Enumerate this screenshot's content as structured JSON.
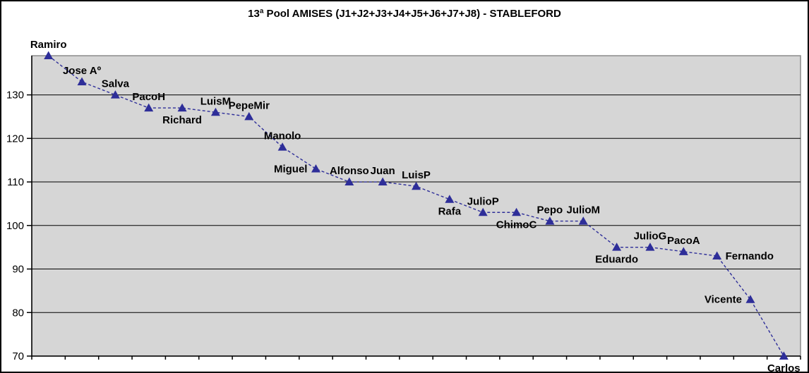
{
  "chart_data": {
    "type": "line",
    "title": "13ª Pool AMISES (J1+J2+J3+J4+J5+J6+J7+J8) - STABLEFORD",
    "xlabel": "",
    "ylabel": "",
    "categories": [
      "Ramiro",
      "Jose Aº",
      "Salva",
      "PacoH",
      "Richard",
      "LuisM",
      "PepeMir",
      "Manolo",
      "Miguel",
      "Alfonso",
      "Juan",
      "LuisP",
      "Rafa",
      "JulioP",
      "ChimoC",
      "Pepo",
      "JulioM",
      "Eduardo",
      "JulioG",
      "PacoA",
      "Fernando",
      "Vicente",
      "Carlos"
    ],
    "values": [
      139,
      133,
      130,
      127,
      127,
      126,
      125,
      118,
      113,
      110,
      110,
      109,
      106,
      103,
      103,
      101,
      101,
      95,
      95,
      94,
      93,
      83,
      70
    ],
    "label_positions": [
      "above",
      "above",
      "above",
      "above",
      "below",
      "above",
      "above",
      "above",
      "left",
      "above",
      "above",
      "above",
      "below",
      "above",
      "below",
      "above",
      "above",
      "below",
      "above",
      "above",
      "right",
      "left",
      "below"
    ],
    "ylim": [
      70,
      139
    ],
    "yticks": [
      70,
      80,
      90,
      100,
      110,
      120,
      130
    ],
    "grid": true,
    "legend_position": "none",
    "marker": "triangle",
    "line_dash": "dashed",
    "colors": {
      "series": "#2e2e99",
      "plot_bg": "#d6d6d6",
      "plot_border": "#8c8c8c",
      "grid": "#000000",
      "axis": "#000000",
      "label": "#000000",
      "background": "#ffffff",
      "border": "#000000"
    }
  }
}
